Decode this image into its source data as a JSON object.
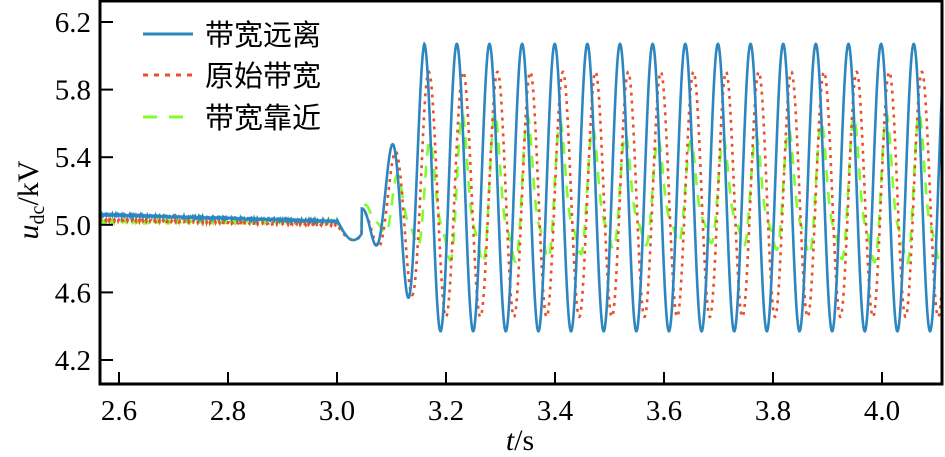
{
  "chart_data": {
    "type": "line",
    "title": "",
    "xlabel": "t/s",
    "ylabel": "u_dc/kV",
    "xlim": [
      2.565,
      4.11
    ],
    "ylim": [
      4.06,
      6.32
    ],
    "xticks": [
      2.6,
      2.8,
      3.0,
      3.2,
      3.4,
      3.6,
      3.8,
      4.0
    ],
    "xtick_labels": [
      "2.6",
      "2.8",
      "3.0",
      "3.2",
      "3.4",
      "3.6",
      "3.8",
      "4.0"
    ],
    "yticks": [
      4.2,
      4.6,
      5.0,
      5.4,
      5.8,
      6.2
    ],
    "ytick_labels": [
      "4.2",
      "4.6",
      "5.0",
      "5.4",
      "5.8",
      "6.2"
    ],
    "grid": false,
    "legend_position": "upper-left",
    "disturbance_time": 3.0,
    "series": [
      {
        "name": "带宽远离",
        "style": "solid",
        "color": "#2E86C1",
        "pre_level": [
          5.06,
          5.02
        ],
        "oscillation": {
          "start": 3.02,
          "freq_hz": 16.7,
          "first_peak_t": 3.16,
          "peak": 6.07,
          "trough": 4.37,
          "center": 5.22
        },
        "sample_points": [
          [
            2.6,
            5.06
          ],
          [
            2.8,
            5.03
          ],
          [
            2.98,
            5.04
          ],
          [
            3.03,
            4.91
          ],
          [
            3.06,
            5.12
          ],
          [
            3.08,
            4.77
          ],
          [
            3.1,
            5.44
          ],
          [
            3.13,
            4.48
          ],
          [
            3.16,
            6.07
          ],
          [
            3.19,
            4.41
          ],
          [
            3.22,
            6.08
          ],
          [
            3.25,
            4.39
          ],
          [
            3.28,
            6.09
          ],
          [
            3.34,
            6.07
          ],
          [
            3.4,
            6.06
          ],
          [
            3.46,
            6.07
          ],
          [
            3.52,
            6.06
          ],
          [
            3.58,
            6.07
          ],
          [
            3.64,
            6.06
          ],
          [
            3.7,
            6.06
          ],
          [
            3.76,
            6.05
          ],
          [
            3.82,
            6.06
          ],
          [
            3.88,
            6.06
          ],
          [
            3.94,
            6.06
          ],
          [
            4.0,
            6.07
          ],
          [
            4.06,
            6.07
          ],
          [
            4.09,
            4.36
          ]
        ]
      },
      {
        "name": "原始带宽",
        "style": "dotted",
        "color": "#E8502A",
        "pre_level": [
          5.03,
          5.0
        ],
        "oscillation": {
          "start": 3.02,
          "freq_hz": 16.7,
          "phase_lag_s": 0.015,
          "peak": 5.91,
          "trough": 4.46,
          "center": 5.18
        },
        "sample_points": [
          [
            2.6,
            5.03
          ],
          [
            2.8,
            5.01
          ],
          [
            2.98,
            5.0
          ],
          [
            3.03,
            4.92
          ],
          [
            3.06,
            5.08
          ],
          [
            3.08,
            4.78
          ],
          [
            3.1,
            5.3
          ],
          [
            3.13,
            4.52
          ],
          [
            3.17,
            5.8
          ],
          [
            3.23,
            5.9
          ],
          [
            3.29,
            5.92
          ],
          [
            3.35,
            5.91
          ],
          [
            3.41,
            5.91
          ],
          [
            3.47,
            5.89
          ],
          [
            3.53,
            5.92
          ],
          [
            3.59,
            5.9
          ],
          [
            3.65,
            5.89
          ],
          [
            3.71,
            5.88
          ],
          [
            3.77,
            5.9
          ],
          [
            3.83,
            5.88
          ],
          [
            3.89,
            5.87
          ],
          [
            3.95,
            5.9
          ],
          [
            4.01,
            5.87
          ],
          [
            4.1,
            5.85
          ]
        ]
      },
      {
        "name": "带宽靠近",
        "style": "dashed",
        "color": "#7FFF2A",
        "pre_level": [
          5.02,
          5.02
        ],
        "oscillation": {
          "start": 3.02,
          "freq_hz": 16.7,
          "peak_range": [
            5.45,
            5.78
          ],
          "trough_range": [
            4.58,
            4.78
          ],
          "center": 5.15,
          "beat": true
        },
        "sample_points": [
          [
            2.6,
            5.02
          ],
          [
            2.8,
            5.03
          ],
          [
            2.98,
            5.02
          ],
          [
            3.03,
            4.9
          ],
          [
            3.06,
            5.06
          ],
          [
            3.08,
            4.8
          ],
          [
            3.1,
            5.22
          ],
          [
            3.13,
            4.75
          ],
          [
            3.16,
            5.45
          ],
          [
            3.2,
            4.72
          ],
          [
            3.25,
            5.45
          ],
          [
            3.3,
            4.7
          ],
          [
            3.36,
            5.6
          ],
          [
            3.43,
            4.66
          ],
          [
            3.48,
            5.58
          ],
          [
            3.55,
            4.7
          ],
          [
            3.6,
            5.65
          ],
          [
            3.68,
            4.63
          ],
          [
            3.72,
            5.6
          ],
          [
            3.8,
            4.58
          ],
          [
            3.85,
            5.68
          ],
          [
            3.92,
            4.58
          ],
          [
            3.98,
            5.72
          ],
          [
            4.06,
            4.52
          ],
          [
            4.1,
            5.62
          ]
        ]
      }
    ]
  },
  "legend": {
    "items": [
      {
        "label": "带宽远离",
        "color": "#2E86C1",
        "style": "solid"
      },
      {
        "label": "原始带宽",
        "color": "#E8502A",
        "style": "dotted"
      },
      {
        "label": "带宽靠近",
        "color": "#7FFF2A",
        "style": "dashed"
      }
    ]
  },
  "axes": {
    "xlabel_italic": "t",
    "xlabel_unit": "/s",
    "ylabel_italic": "u",
    "ylabel_sub": "dc",
    "ylabel_unit": "/kV"
  }
}
